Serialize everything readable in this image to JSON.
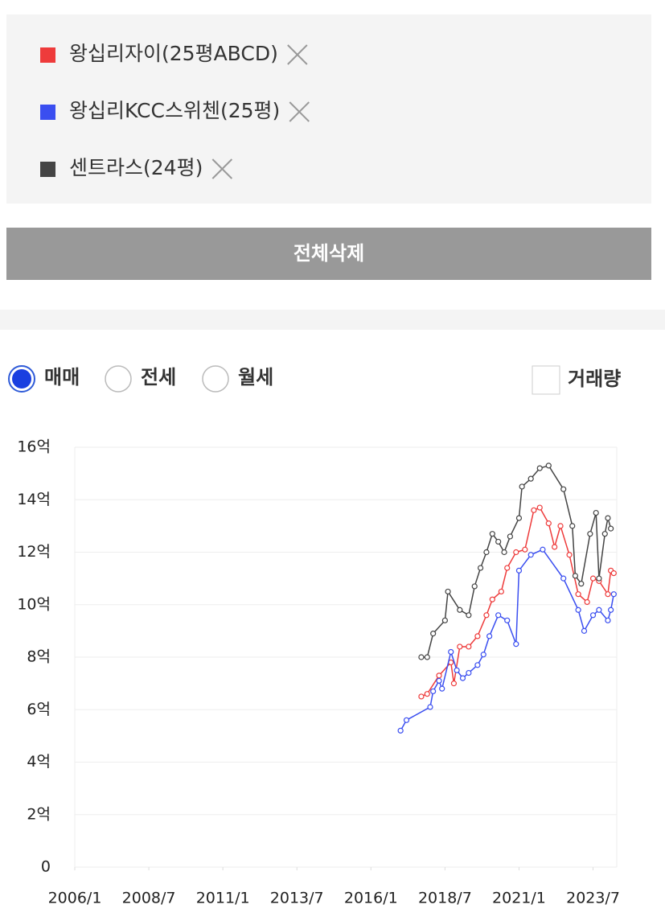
{
  "ui": {
    "delete_all": "전체삭제",
    "radios": [
      "매매",
      "전세",
      "월세"
    ],
    "checkbox": "거래량"
  },
  "chart_data": {
    "type": "line",
    "series": [
      {
        "name": "왕십리자이(25평ABCD)",
        "color": "#ee3b3b",
        "x": [
          2017.7,
          2017.9,
          2018.3,
          2018.7,
          2018.8,
          2019.0,
          2019.3,
          2019.6,
          2019.9,
          2020.1,
          2020.4,
          2020.6,
          2020.9,
          2021.2,
          2021.5,
          2021.7,
          2022.0,
          2022.2,
          2022.4,
          2022.7,
          2023.0,
          2023.3,
          2023.5,
          2023.7,
          2024.0,
          2024.1,
          2024.2
        ],
        "values": [
          6.5,
          6.6,
          7.3,
          7.8,
          7.0,
          8.4,
          8.4,
          8.8,
          9.6,
          10.2,
          10.5,
          11.4,
          12.0,
          12.1,
          13.6,
          13.7,
          13.1,
          12.2,
          13.0,
          11.9,
          10.4,
          10.1,
          11.0,
          10.9,
          10.4,
          11.3,
          11.2
        ]
      },
      {
        "name": "왕십리KCC스위첸(25평)",
        "color": "#3a4ef0",
        "x": [
          2017.0,
          2017.2,
          2018.0,
          2018.1,
          2018.3,
          2018.4,
          2018.7,
          2018.9,
          2019.1,
          2019.3,
          2019.6,
          2019.8,
          2020.0,
          2020.3,
          2020.6,
          2020.9,
          2021.0,
          2021.4,
          2021.8,
          2022.5,
          2023.0,
          2023.2,
          2023.5,
          2023.7,
          2024.0,
          2024.1,
          2024.2
        ],
        "values": [
          5.2,
          5.6,
          6.1,
          6.7,
          7.1,
          6.8,
          8.2,
          7.5,
          7.2,
          7.4,
          7.7,
          8.1,
          8.8,
          9.6,
          9.4,
          8.5,
          11.3,
          11.9,
          12.1,
          11.0,
          9.8,
          9.0,
          9.6,
          9.8,
          9.4,
          9.8,
          10.4
        ]
      },
      {
        "name": "센트라스(24평)",
        "color": "#444444",
        "x": [
          2017.7,
          2017.9,
          2018.1,
          2018.5,
          2018.6,
          2019.0,
          2019.3,
          2019.5,
          2019.7,
          2019.9,
          2020.1,
          2020.3,
          2020.5,
          2020.7,
          2021.0,
          2021.1,
          2021.4,
          2021.7,
          2022.0,
          2022.5,
          2022.8,
          2022.9,
          2023.1,
          2023.4,
          2023.6,
          2023.7,
          2023.9,
          2024.0,
          2024.1
        ],
        "values": [
          8.0,
          8.0,
          8.9,
          9.4,
          10.5,
          9.8,
          9.6,
          10.7,
          11.4,
          12.0,
          12.7,
          12.4,
          12.0,
          12.6,
          13.3,
          14.5,
          14.8,
          15.2,
          15.3,
          14.4,
          13.0,
          11.1,
          10.8,
          12.7,
          13.5,
          11.0,
          12.7,
          13.3,
          12.9
        ]
      }
    ],
    "xlim": [
      2006.0,
      2024.3
    ],
    "xticks": [
      {
        "value": 2006.0,
        "label": "2006/1"
      },
      {
        "value": 2008.5,
        "label": "2008/7"
      },
      {
        "value": 2011.0,
        "label": "2011/1"
      },
      {
        "value": 2013.5,
        "label": "2013/7"
      },
      {
        "value": 2016.0,
        "label": "2016/1"
      },
      {
        "value": 2018.5,
        "label": "2018/7"
      },
      {
        "value": 2021.0,
        "label": "2021/1"
      },
      {
        "value": 2023.5,
        "label": "2023/7"
      }
    ],
    "ylim": [
      0,
      16
    ],
    "yticks": [
      0,
      {
        "value": 2,
        "label": "2억"
      },
      {
        "value": 4,
        "label": "4억"
      },
      {
        "value": 6,
        "label": "6억"
      },
      {
        "value": 8,
        "label": "8억"
      },
      {
        "value": 10,
        "label": "10억"
      },
      {
        "value": 12,
        "label": "12억"
      },
      {
        "value": 14,
        "label": "14억"
      },
      {
        "value": 16,
        "label": "16억"
      }
    ],
    "grid": true
  }
}
